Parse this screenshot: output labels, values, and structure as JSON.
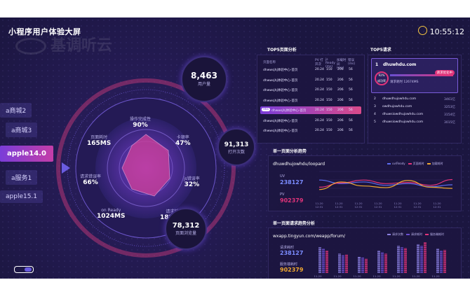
{
  "header": {
    "title": "小程序用户体验大屏",
    "watermark": "基调听云",
    "time": "10:55:12"
  },
  "left_tabs": [
    {
      "label": "a商城2",
      "active": false
    },
    {
      "label": "a商城3",
      "active": false
    },
    {
      "label": "apple14.0",
      "active": true
    },
    {
      "label": "a服务1",
      "active": false
    },
    {
      "label": "apple15.1",
      "active": false
    }
  ],
  "hub": {
    "bubbles": [
      {
        "value": "8,463",
        "label": "用户量"
      },
      {
        "value": "91,313",
        "label": "打开次数"
      },
      {
        "value": "78,312",
        "label": "页面浏览量"
      }
    ],
    "metrics": [
      {
        "label": "操作完成性",
        "value": "90%"
      },
      {
        "label": "卡顿率",
        "value": "47%"
      },
      {
        "label": "js错误率",
        "value": "32%"
      },
      {
        "label": "请求耗时",
        "value": "1889MS"
      },
      {
        "label": "on Ready",
        "value": "1024MS"
      },
      {
        "label": "请求错误率",
        "value": "66%"
      },
      {
        "label": "页面耗时",
        "value": "165MS"
      }
    ]
  },
  "top5_pages": {
    "title": "TOP5页面分析",
    "columns": [
      "页面名称",
      "PV 打开次",
      "js Ready (ms)",
      "加载时间 (ms)",
      "错误 (ms)"
    ],
    "rows": [
      {
        "name": "dhwwsjhj体验中心-首页",
        "c1": "20.24",
        "c2": "150",
        "c3": "206",
        "c4": "56",
        "highlight": false
      },
      {
        "name": "dhwwsjhj体验中心-首页",
        "c1": "20.24",
        "c2": "150",
        "c3": "206",
        "c4": "56",
        "highlight": false
      },
      {
        "name": "dhwwsjhj体验中心-首页",
        "c1": "20.24",
        "c2": "150",
        "c3": "206",
        "c4": "56",
        "highlight": false
      },
      {
        "name": "dhwwsjhj体验中心-首页",
        "c1": "20.24",
        "c2": "150",
        "c3": "206",
        "c4": "56",
        "highlight": false
      },
      {
        "name": "dhwwsjhj体验中心-首页",
        "c1": "20.24",
        "c2": "150",
        "c3": "206",
        "c4": "56",
        "highlight": true,
        "badge": "98s"
      },
      {
        "name": "dhwwsjhj体验中心-首页",
        "c1": "20.24",
        "c2": "150",
        "c3": "206",
        "c4": "56",
        "highlight": false
      },
      {
        "name": "dhwwsjhj体验中心-首页",
        "c1": "20.24",
        "c2": "150",
        "c3": "206",
        "c4": "56",
        "highlight": false
      }
    ]
  },
  "top5_requests": {
    "title": "TOP5请求",
    "first": {
      "rank": "1",
      "domain": "dhuwhdu.com",
      "badge": "请求优化中",
      "score": "92%",
      "score_label": "成功率",
      "detail": "请求耗时 12674MS"
    },
    "rows": [
      {
        "rank": "2",
        "domain": "dhuwdhujowhdu.com",
        "value": "3461亿"
      },
      {
        "rank": "3",
        "domain": "owdhujowhdu.com",
        "value": "3253亿"
      },
      {
        "rank": "4",
        "domain": "dhuwsiowdhujowhdu.com",
        "value": "3154亿"
      },
      {
        "rank": "5",
        "domain": "dhuwsiowdhujowhdu.com",
        "value": "3015亿"
      }
    ]
  },
  "page_trend": {
    "title": "单一页面分析趋势",
    "url": "dhuwdhujowhdu/loopard",
    "uv_label": "UV",
    "uv_value": "238127",
    "pv_label": "PV",
    "pv_value": "902379",
    "legend": [
      "uv/Ready",
      "页面耗时",
      "加载耗时"
    ],
    "x_ticks": [
      "11-20 12:31",
      "11-20 12:31",
      "11-20 12:31",
      "11-20 12:31",
      "11-20 12:31",
      "11-20 12:31",
      "11-20 12:31"
    ]
  },
  "request_trend": {
    "title": "单一页面请求趋势分析",
    "url": "wxapp.tingyun.com/weapp/forum/",
    "l1_label": "请求耗时",
    "l1_value": "238127",
    "l2_label": "服务端耗时",
    "l2_value": "902379",
    "legend": [
      "请求次数",
      "请求耗时",
      "服务端耗时"
    ],
    "x_ticks": [
      "11-20 12:31",
      "11-20 12:31",
      "11-20 12:31",
      "11-20 12:31",
      "11-20 12:31",
      "11-20 12:31",
      "11-20 12:31"
    ]
  },
  "chart_data": [
    {
      "type": "line",
      "title": "单一页面分析趋势",
      "categories": [
        "11-20 12:31",
        "11-20 12:31",
        "11-20 12:31",
        "11-20 12:31",
        "11-20 12:31",
        "11-20 12:31",
        "11-20 12:31"
      ],
      "series": [
        {
          "name": "uv/Ready",
          "color": "#5b6cf0",
          "values": [
            70,
            55,
            62,
            48,
            55,
            42,
            50
          ]
        },
        {
          "name": "页面耗时",
          "color": "#e0347a",
          "values": [
            40,
            58,
            70,
            55,
            60,
            48,
            72
          ]
        },
        {
          "name": "加载耗时",
          "color": "#f0a830",
          "values": [
            30,
            62,
            45,
            38,
            68,
            40,
            35
          ]
        }
      ]
    },
    {
      "type": "bar",
      "title": "单一页面请求趋势分析",
      "categories": [
        "11-20 12:31",
        "11-20 12:31",
        "11-20 12:31",
        "11-20 12:31",
        "11-20 12:31",
        "11-20 12:31",
        "11-20 12:31"
      ],
      "series": [
        {
          "name": "请求次数",
          "color": "#8a7fe0",
          "values": [
            80,
            60,
            50,
            70,
            85,
            90,
            75
          ]
        },
        {
          "name": "请求耗时",
          "color": "#6a4fd0",
          "values": [
            75,
            55,
            48,
            65,
            80,
            85,
            70
          ]
        },
        {
          "name": "服务端耗时",
          "color": "#e0347a",
          "values": [
            70,
            58,
            45,
            60,
            78,
            95,
            72
          ]
        }
      ]
    }
  ]
}
